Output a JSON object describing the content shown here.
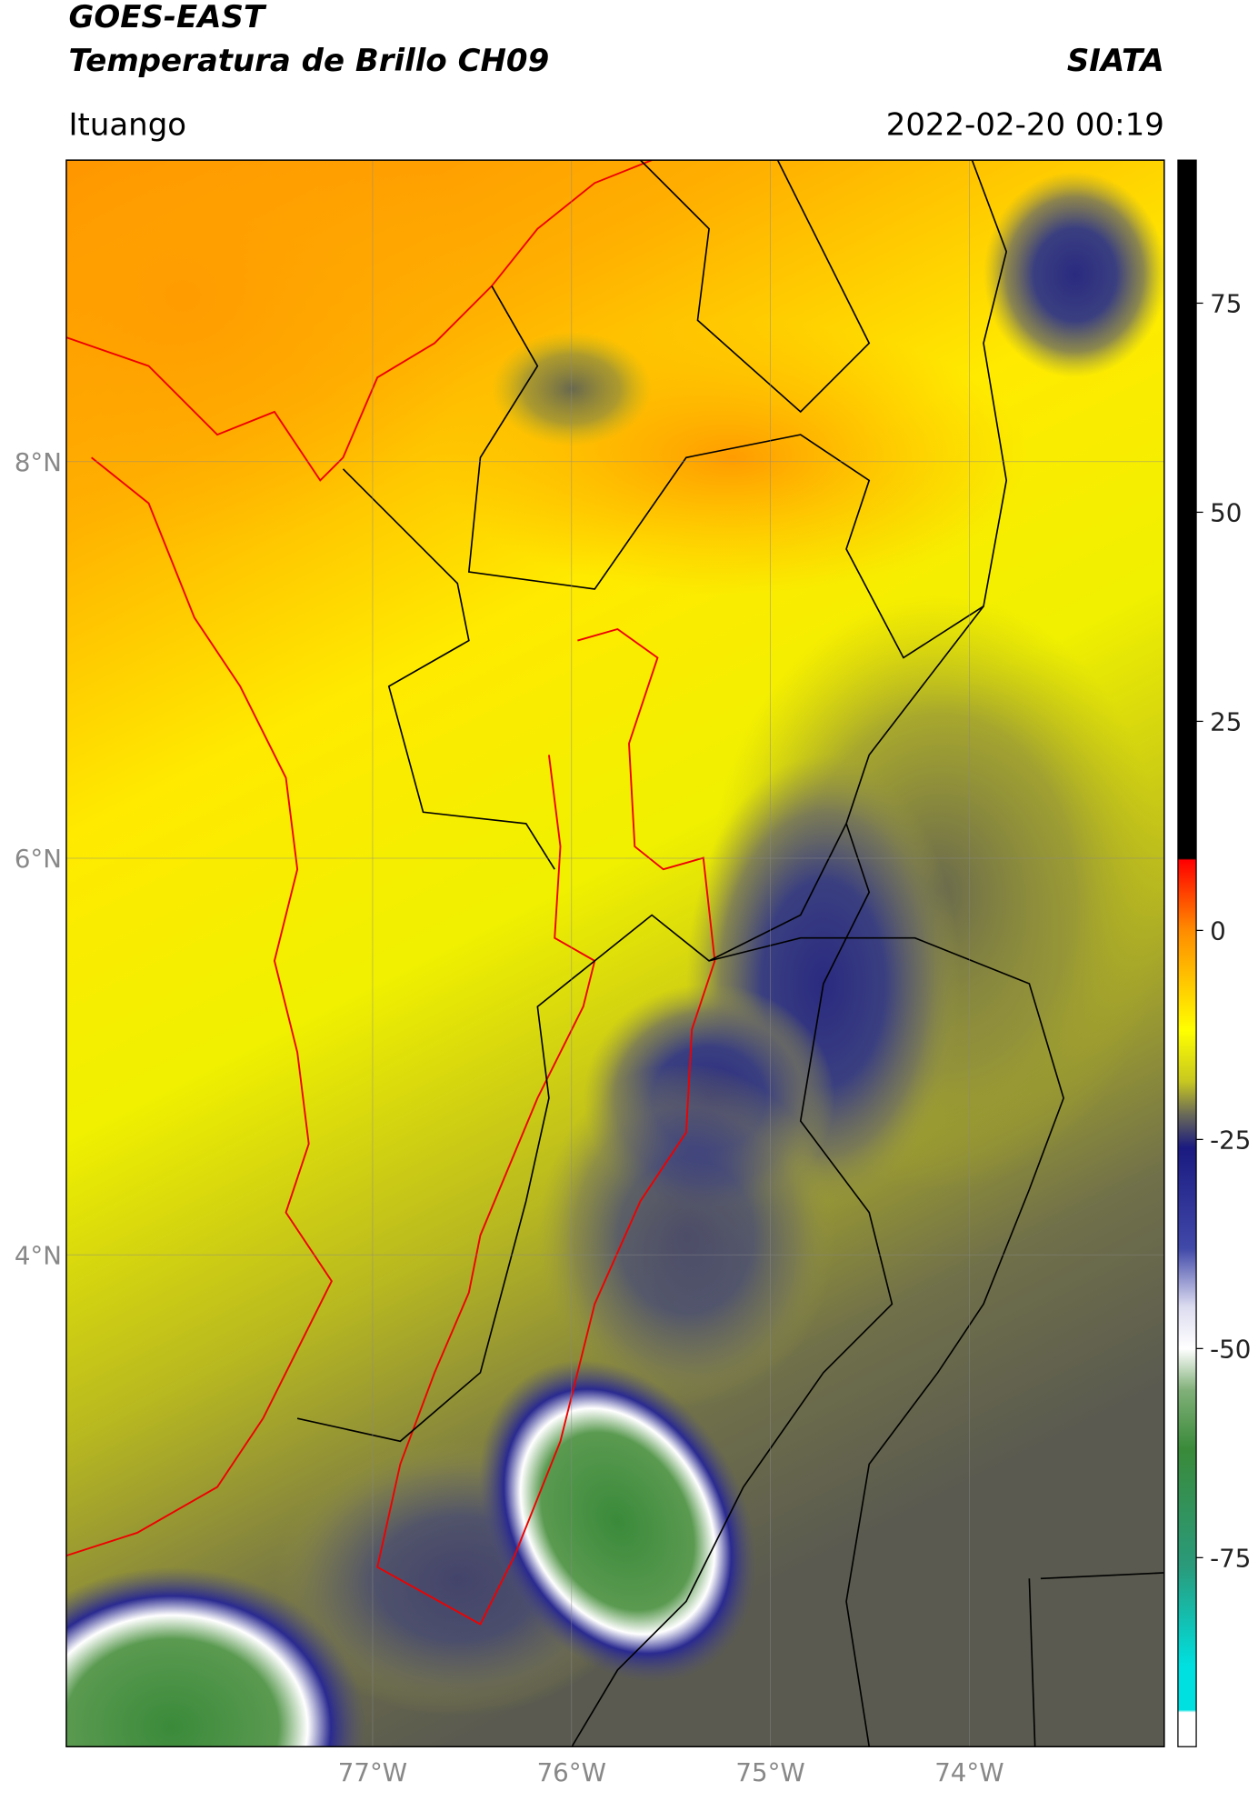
{
  "header": {
    "title": "GOES-EAST",
    "subtitle": "Temperatura de Brillo CH09",
    "organization": "SIATA",
    "region": "Ituango",
    "datetime": "2022-02-20 00:19"
  },
  "map": {
    "xlim": [
      -78.54,
      -73.02
    ],
    "ylim": [
      1.52,
      9.52
    ],
    "grid": true,
    "xticks": [
      {
        "value": -77,
        "label": "77°W"
      },
      {
        "value": -76,
        "label": "76°W"
      },
      {
        "value": -75,
        "label": "75°W"
      },
      {
        "value": -74,
        "label": "74°W"
      }
    ],
    "yticks": [
      {
        "value": 8,
        "label": "8°N"
      },
      {
        "value": 6,
        "label": "6°N"
      },
      {
        "value": 4,
        "label": "4°N"
      }
    ]
  },
  "colorbar": {
    "lim": [
      -97.6,
      92.1
    ],
    "ticks": [
      75,
      50,
      25,
      0,
      -25,
      -50,
      -75
    ],
    "colormap": [
      {
        "value": 92.1,
        "color": "#000000"
      },
      {
        "value": 8.6,
        "color": "#000000"
      },
      {
        "value": 8.4,
        "color": "#ff0000"
      },
      {
        "value": 0,
        "color": "#ff8c00"
      },
      {
        "value": -12,
        "color": "#ffff00"
      },
      {
        "value": -18,
        "color": "#c8c820"
      },
      {
        "value": -22,
        "color": "#6a6a58"
      },
      {
        "value": -26,
        "color": "#1a1a80"
      },
      {
        "value": -38,
        "color": "#4048a8"
      },
      {
        "value": -45,
        "color": "#dcdcf0"
      },
      {
        "value": -50,
        "color": "#ffffff"
      },
      {
        "value": -55,
        "color": "#80b078"
      },
      {
        "value": -62,
        "color": "#3a8a3a"
      },
      {
        "value": -76,
        "color": "#2a9a7a"
      },
      {
        "value": -88,
        "color": "#00e0e0"
      },
      {
        "value": -93.2,
        "color": "#00e0e0"
      },
      {
        "value": -93.5,
        "color": "#ffffff"
      },
      {
        "value": -97.6,
        "color": "#ffffff"
      }
    ]
  }
}
